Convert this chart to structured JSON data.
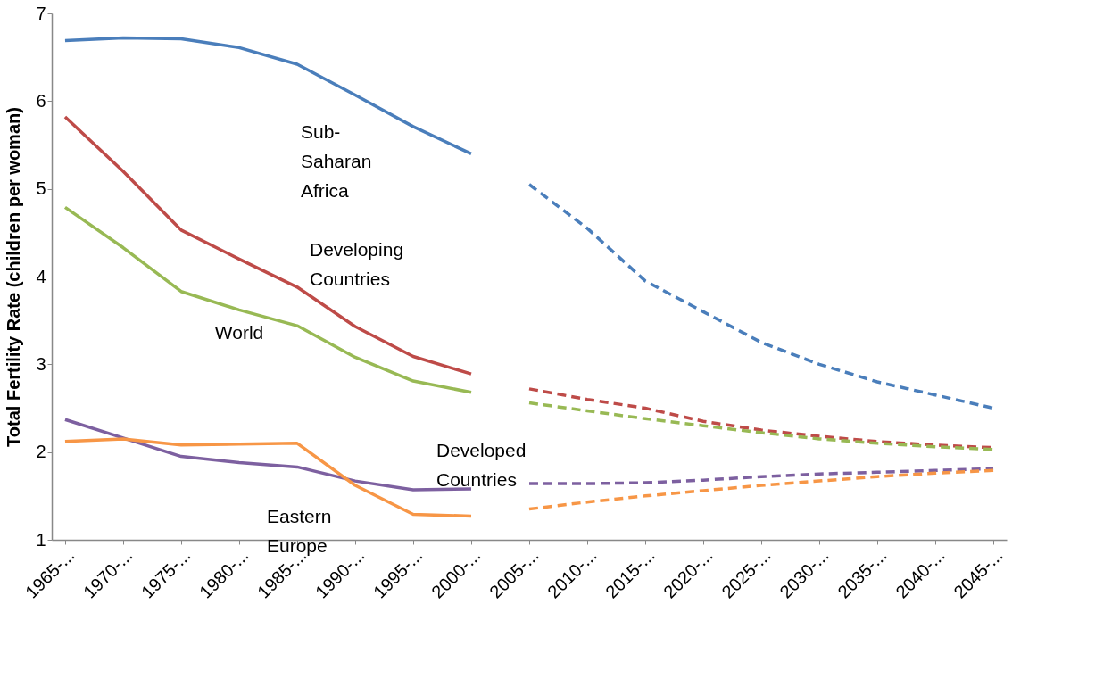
{
  "chart_data": {
    "type": "line",
    "ylabel": "Total Fertility Rate (children per woman)",
    "categories": [
      "1965-...",
      "1970-...",
      "1975-...",
      "1980-...",
      "1985-...",
      "1990-...",
      "1995-...",
      "2000-...",
      "2005-...",
      "2010-...",
      "2015-...",
      "2020-...",
      "2025-...",
      "2030-...",
      "2035-...",
      "2040-...",
      "2045-..."
    ],
    "series": [
      {
        "color": "#4a7ebb",
        "line_style": "solid",
        "values": [
          6.69,
          6.72,
          6.71,
          6.61,
          6.42,
          6.07,
          5.71,
          5.4,
          null,
          null,
          null,
          null,
          null,
          null,
          null,
          null,
          null
        ]
      },
      {
        "color": "#4a7ebb",
        "line_style": "dashed",
        "values": [
          null,
          null,
          null,
          null,
          null,
          null,
          null,
          null,
          5.05,
          4.55,
          3.95,
          3.6,
          3.25,
          3.0,
          2.8,
          2.65,
          2.5
        ]
      },
      {
        "color": "#be4b48",
        "line_style": "solid",
        "values": [
          5.82,
          5.2,
          4.53,
          4.2,
          3.88,
          3.43,
          3.09,
          2.89,
          null,
          null,
          null,
          null,
          null,
          null,
          null,
          null,
          null
        ]
      },
      {
        "color": "#be4b48",
        "line_style": "dashed",
        "values": [
          null,
          null,
          null,
          null,
          null,
          null,
          null,
          null,
          2.72,
          2.6,
          2.5,
          2.35,
          2.25,
          2.18,
          2.12,
          2.08,
          2.05
        ]
      },
      {
        "color": "#98b954",
        "line_style": "solid",
        "values": [
          4.79,
          4.33,
          3.83,
          3.62,
          3.44,
          3.08,
          2.81,
          2.68,
          null,
          null,
          null,
          null,
          null,
          null,
          null,
          null,
          null
        ]
      },
      {
        "color": "#98b954",
        "line_style": "dashed",
        "values": [
          null,
          null,
          null,
          null,
          null,
          null,
          null,
          null,
          2.56,
          2.47,
          2.38,
          2.3,
          2.22,
          2.15,
          2.1,
          2.06,
          2.03
        ]
      },
      {
        "color": "#7d60a0",
        "line_style": "solid",
        "values": [
          2.37,
          2.16,
          1.95,
          1.88,
          1.83,
          1.67,
          1.57,
          1.58,
          null,
          null,
          null,
          null,
          null,
          null,
          null,
          null,
          null
        ]
      },
      {
        "color": "#7d60a0",
        "line_style": "dashed",
        "values": [
          null,
          null,
          null,
          null,
          null,
          null,
          null,
          null,
          1.64,
          1.64,
          1.65,
          1.68,
          1.72,
          1.75,
          1.77,
          1.79,
          1.81
        ]
      },
      {
        "color": "#f79646",
        "line_style": "solid",
        "values": [
          2.12,
          2.15,
          2.08,
          2.09,
          2.1,
          1.62,
          1.29,
          1.27,
          null,
          null,
          null,
          null,
          null,
          null,
          null,
          null,
          null
        ]
      },
      {
        "color": "#f79646",
        "line_style": "dashed",
        "values": [
          null,
          null,
          null,
          null,
          null,
          null,
          null,
          null,
          1.35,
          1.43,
          1.5,
          1.56,
          1.62,
          1.67,
          1.72,
          1.76,
          1.79
        ]
      }
    ],
    "annotations": [
      "Sub-\nSaharan\nAfrica",
      "Developing\nCountries",
      "World",
      "Developed\nCountries",
      "Eastern\nEurope"
    ],
    "ylim": [
      1,
      7
    ],
    "yticks": [
      1,
      2,
      3,
      4,
      5,
      6,
      7
    ],
    "grid": false,
    "legend": false,
    "marker": "none"
  }
}
